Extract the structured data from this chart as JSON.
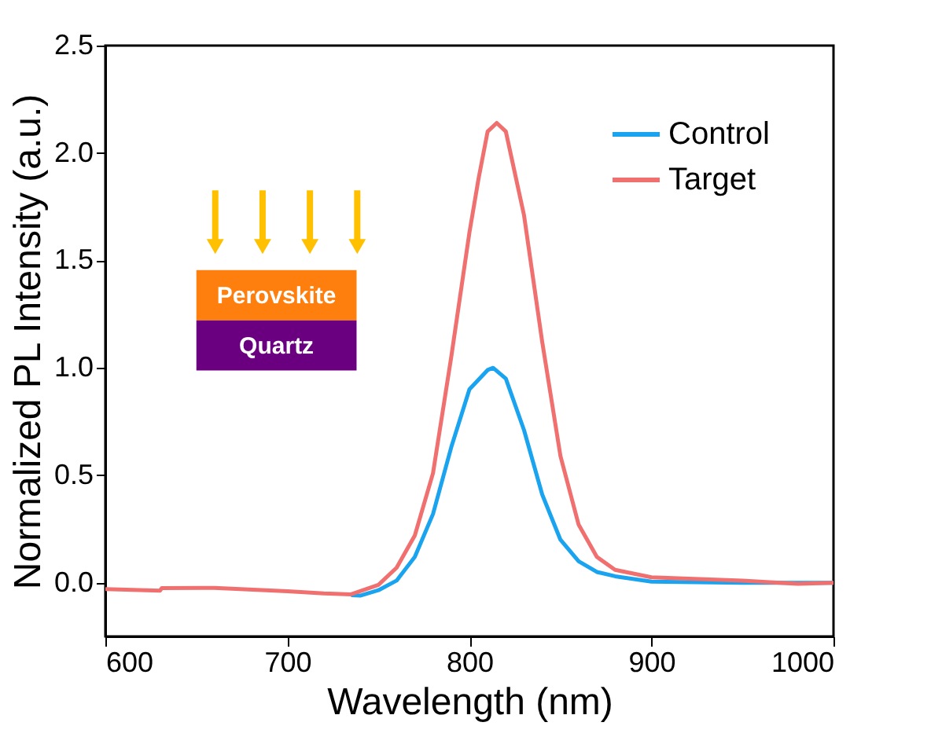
{
  "chart_data": {
    "type": "line",
    "xlabel": "Wavelength (nm)",
    "ylabel": "Normalized PL Intensity (a.u.)",
    "xlim": [
      600,
      1000
    ],
    "ylim": [
      -0.25,
      2.5
    ],
    "xticks": [
      600,
      700,
      800,
      900,
      {
        "value": 1000,
        "label": "1000"
      }
    ],
    "yticks": [
      {
        "value": 0,
        "label": "0.0"
      },
      0.5,
      {
        "value": 1,
        "label": "1.0"
      },
      1.5,
      {
        "value": 2,
        "label": "2.0"
      },
      2.5
    ],
    "legend": "top right",
    "grid": false,
    "marker": "none",
    "line_style": "solid",
    "annotations": [
      "Perovskite",
      "Quartz"
    ],
    "series": [
      {
        "name": "Control",
        "color": "#1aa3ef",
        "x": [
          735,
          740,
          750,
          760,
          770,
          780,
          790,
          800,
          810,
          813,
          820,
          830,
          840,
          850,
          860,
          870,
          880,
          900,
          950,
          1000
        ],
        "values": [
          -0.058,
          -0.06,
          -0.035,
          0.01,
          0.12,
          0.32,
          0.63,
          0.9,
          0.99,
          1.0,
          0.95,
          0.71,
          0.41,
          0.2,
          0.1,
          0.05,
          0.03,
          0.005,
          0.0,
          0.0
        ]
      },
      {
        "name": "Target",
        "color": "#f07070",
        "x": [
          600,
          630,
          631,
          660,
          700,
          720,
          735,
          750,
          760,
          770,
          780,
          790,
          800,
          805,
          810,
          815,
          820,
          830,
          840,
          850,
          860,
          870,
          880,
          900,
          950,
          980,
          1000
        ],
        "values": [
          -0.03,
          -0.037,
          -0.025,
          -0.024,
          -0.04,
          -0.05,
          -0.054,
          -0.01,
          0.07,
          0.22,
          0.51,
          1.05,
          1.63,
          1.88,
          2.1,
          2.14,
          2.1,
          1.71,
          1.12,
          0.59,
          0.27,
          0.12,
          0.06,
          0.025,
          0.01,
          -0.005,
          0.0
        ]
      }
    ]
  }
}
